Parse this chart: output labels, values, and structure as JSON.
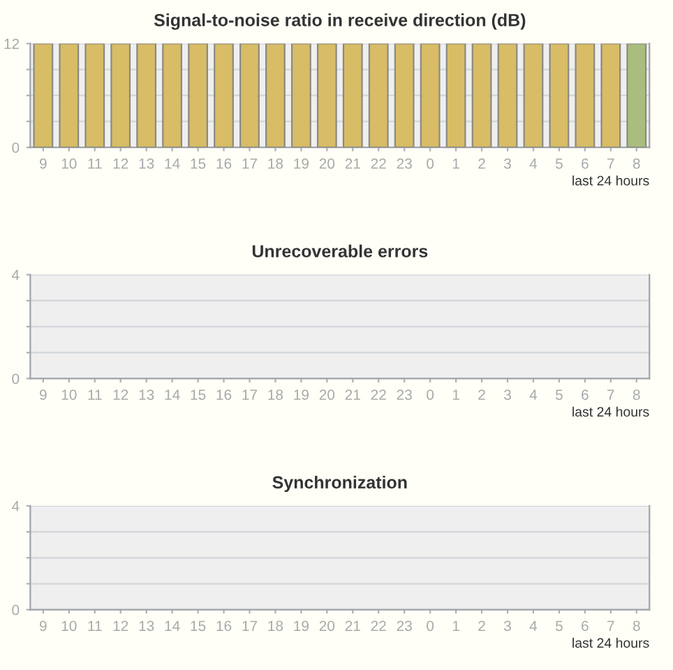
{
  "chart_data": [
    {
      "type": "bar",
      "title": "Signal-to-noise ratio in receive direction (dB)",
      "xlabel": "last 24 hours",
      "categories": [
        "9",
        "10",
        "11",
        "12",
        "13",
        "14",
        "15",
        "16",
        "17",
        "18",
        "19",
        "20",
        "21",
        "22",
        "23",
        "0",
        "1",
        "2",
        "3",
        "4",
        "5",
        "6",
        "7",
        "8"
      ],
      "values": [
        12,
        12,
        12,
        12,
        12,
        12,
        12,
        12,
        12,
        12,
        12,
        12,
        12,
        12,
        12,
        12,
        12,
        12,
        12,
        12,
        12,
        12,
        12,
        12
      ],
      "colors": [
        "#d8bc66",
        "#d8bc66",
        "#d8bc66",
        "#d8bc66",
        "#d8bc66",
        "#d8bc66",
        "#d8bc66",
        "#d8bc66",
        "#d8bc66",
        "#d8bc66",
        "#d8bc66",
        "#d8bc66",
        "#d8bc66",
        "#d8bc66",
        "#d8bc66",
        "#d8bc66",
        "#d8bc66",
        "#d8bc66",
        "#d8bc66",
        "#d8bc66",
        "#d8bc66",
        "#d8bc66",
        "#d8bc66",
        "#a9bd7e"
      ],
      "ylim": [
        0,
        12
      ],
      "yticks": [
        0,
        {
          "value": 3,
          "label": null
        },
        {
          "value": 6,
          "label": null
        },
        {
          "value": 9,
          "label": null
        },
        12
      ],
      "grid": "y"
    },
    {
      "type": "bar",
      "title": "Unrecoverable errors",
      "xlabel": "last 24 hours",
      "categories": [
        "9",
        "10",
        "11",
        "12",
        "13",
        "14",
        "15",
        "16",
        "17",
        "18",
        "19",
        "20",
        "21",
        "22",
        "23",
        "0",
        "1",
        "2",
        "3",
        "4",
        "5",
        "6",
        "7",
        "8"
      ],
      "values": [
        null,
        null,
        null,
        null,
        null,
        null,
        null,
        null,
        null,
        null,
        null,
        null,
        null,
        null,
        null,
        null,
        null,
        null,
        null,
        null,
        null,
        null,
        null,
        null
      ],
      "ylim": [
        0,
        4
      ],
      "yticks": [
        0,
        {
          "value": 1,
          "label": null
        },
        {
          "value": 2,
          "label": null
        },
        {
          "value": 3,
          "label": null
        },
        4
      ],
      "grid": "y"
    },
    {
      "type": "bar",
      "title": "Synchronization",
      "xlabel": "last 24 hours",
      "categories": [
        "9",
        "10",
        "11",
        "12",
        "13",
        "14",
        "15",
        "16",
        "17",
        "18",
        "19",
        "20",
        "21",
        "22",
        "23",
        "0",
        "1",
        "2",
        "3",
        "4",
        "5",
        "6",
        "7",
        "8"
      ],
      "values": [
        null,
        null,
        null,
        null,
        null,
        null,
        null,
        null,
        null,
        null,
        null,
        null,
        null,
        null,
        null,
        null,
        null,
        null,
        null,
        null,
        null,
        null,
        null,
        null
      ],
      "ylim": [
        0,
        4
      ],
      "yticks": [
        0,
        {
          "value": 1,
          "label": null
        },
        {
          "value": 2,
          "label": null
        },
        {
          "value": 3,
          "label": null
        },
        4
      ],
      "grid": "y"
    }
  ]
}
